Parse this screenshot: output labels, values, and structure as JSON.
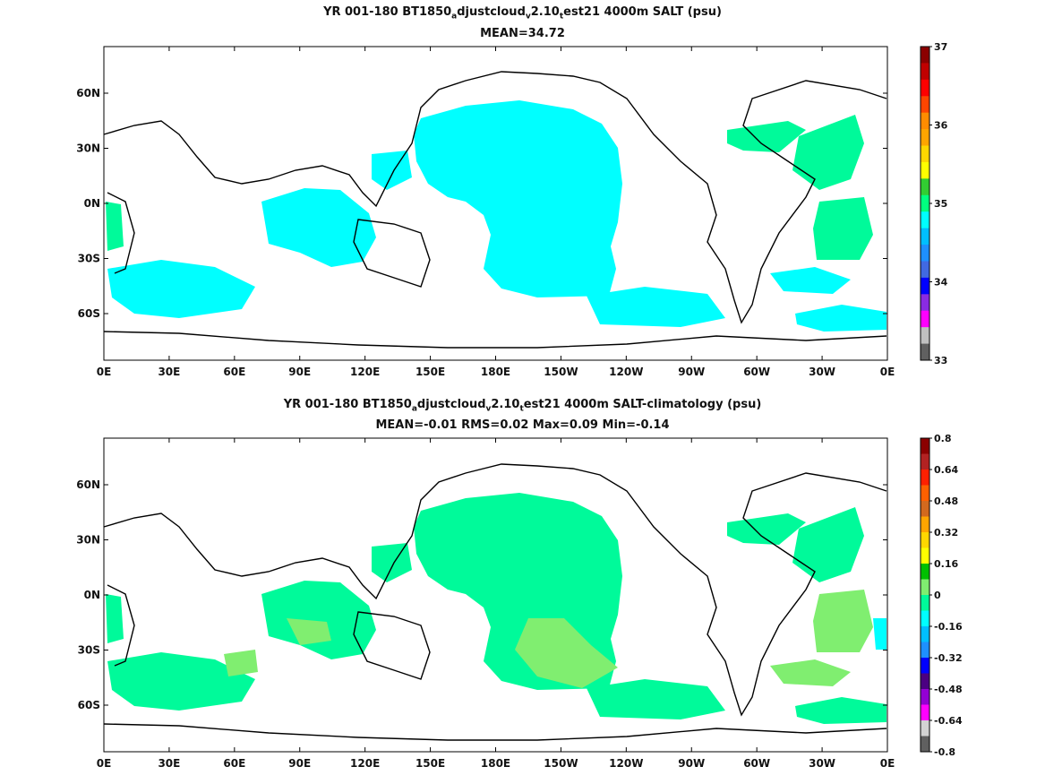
{
  "top_panel": {
    "title_parts": [
      "YR 001-180 BT1850",
      "a",
      "djustcloud",
      "v",
      "2.10",
      "t",
      "est21 4000m SALT (psu)"
    ],
    "stats": "MEAN=34.72",
    "colorbar": {
      "ticks": [
        "37",
        "36",
        "35",
        "34",
        "33"
      ],
      "colors": [
        "#8b0000",
        "#c00000",
        "#ff0000",
        "#ff4500",
        "#ff8c00",
        "#ffa500",
        "#ffd700",
        "#ffff00",
        "#32cd32",
        "#00ff7f",
        "#00ffff",
        "#00bfff",
        "#1e90ff",
        "#4169e1",
        "#0000ff",
        "#8a2be2",
        "#ff00ff",
        "#c0c0c0",
        "#606060"
      ]
    }
  },
  "bottom_panel": {
    "title_parts": [
      "YR 001-180 BT1850",
      "a",
      "djustcloud",
      "v",
      "2.10",
      "t",
      "est21 4000m SALT-climatology (psu)"
    ],
    "stats": "MEAN=-0.01   RMS=0.02   Max=0.09   Min=-0.14",
    "colorbar": {
      "ticks": [
        "0.8",
        "0.64",
        "0.48",
        "0.32",
        "0.16",
        "0",
        "-0.16",
        "-0.32",
        "-0.48",
        "-0.64",
        "-0.8"
      ],
      "colors": [
        "#8b0000",
        "#b22222",
        "#ff2000",
        "#ff6000",
        "#d2691e",
        "#ffa500",
        "#ffd700",
        "#ffff00",
        "#00c000",
        "#80ee70",
        "#00fa9a",
        "#00ffff",
        "#00bfff",
        "#1e90ff",
        "#0000ff",
        "#4b0082",
        "#9400d3",
        "#ff00ff",
        "#d3d3d3",
        "#606060"
      ]
    }
  },
  "map": {
    "x_ticks": [
      "0E",
      "30E",
      "60E",
      "90E",
      "120E",
      "150E",
      "180E",
      "150W",
      "120W",
      "90W",
      "60W",
      "30W",
      "0E"
    ],
    "y_ticks": [
      "60N",
      "30N",
      "0N",
      "30S",
      "60S"
    ],
    "fill_colors": {
      "cyan": "#00ffff",
      "green": "#00fa9a",
      "lightgreen": "#80ee70"
    }
  }
}
